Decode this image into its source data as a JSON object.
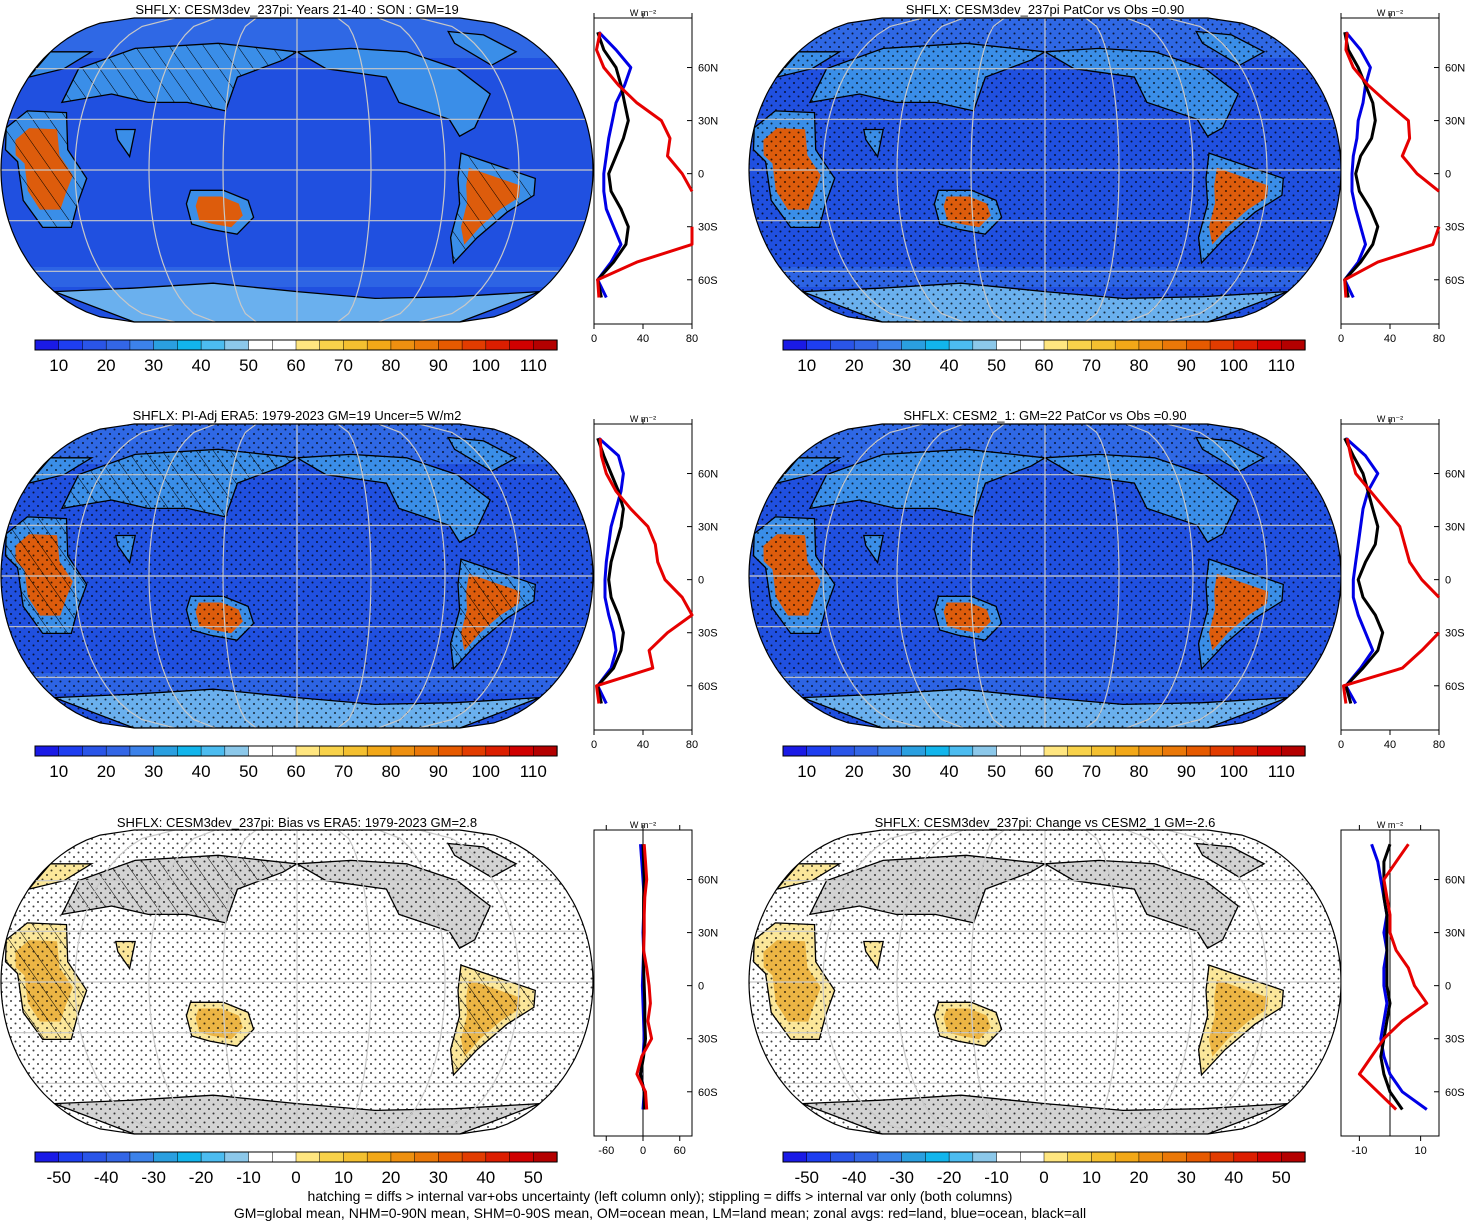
{
  "footnote": {
    "line1": "hatching = diffs > internal var+obs uncertainty (left column only); stippling = diffs > internal var only (both columns)",
    "line2": "GM=global mean, NHM=0-90N mean, SHM=0-90S mean, OM=ocean mean, LM=land mean; zonal avgs: red=land, blue=ocean, black=all"
  },
  "colors": {
    "land": "#e60000",
    "ocean": "#0000e6",
    "all": "#000000",
    "missing": "#d3d3d3",
    "graticule": "#c8c8c8"
  },
  "scales": {
    "abs": {
      "labels": [
        "10",
        "20",
        "30",
        "40",
        "50",
        "60",
        "70",
        "80",
        "90",
        "100",
        "110"
      ],
      "colors": [
        "#1a1ae6",
        "#1e3ef0",
        "#2a55e8",
        "#3366e6",
        "#3c82ea",
        "#2a9fe0",
        "#12b5ec",
        "#4cbcf0",
        "#8cc8ea",
        "#ffffff",
        "#ffffff",
        "#ffe680",
        "#f8d24a",
        "#f4c030",
        "#f2a818",
        "#ee9010",
        "#ea7808",
        "#e65a00",
        "#e23c00",
        "#dc1e00",
        "#d00000",
        "#b40000"
      ]
    },
    "diff": {
      "labels": [
        "-50",
        "-40",
        "-30",
        "-20",
        "-10",
        "0",
        "10",
        "20",
        "30",
        "40",
        "50"
      ],
      "colors": [
        "#1a1ae6",
        "#1e3ef0",
        "#2a55e8",
        "#3366e6",
        "#3c82ea",
        "#2a9fe0",
        "#12b5ec",
        "#4cbcf0",
        "#8cc8ea",
        "#ffffff",
        "#ffffff",
        "#ffe680",
        "#f8d24a",
        "#f4c030",
        "#f2a818",
        "#ee9010",
        "#ea7808",
        "#e65a00",
        "#e23c00",
        "#dc1e00",
        "#d00000",
        "#b40000"
      ]
    }
  },
  "chart_data": [
    {
      "type": "heatmap",
      "title": "SHFLX: CESM3dev_237pi: Years 21-40 : SON : GM=19",
      "kind": "abs",
      "hatching": true,
      "stippling": false,
      "zonal": {
        "unit": "W m⁻²",
        "lat_ticks": [
          "60N",
          "30N",
          "0",
          "30S",
          "60S"
        ],
        "x_ticks": [
          "0",
          "40",
          "80"
        ],
        "xlim": [
          0,
          80
        ],
        "lat": [
          80,
          70,
          60,
          50,
          40,
          30,
          20,
          10,
          0,
          -10,
          -20,
          -30,
          -40,
          -50,
          -60,
          -70
        ],
        "land": [
          5,
          2,
          8,
          20,
          35,
          55,
          62,
          60,
          72,
          82,
          null,
          92,
          80,
          35,
          3,
          4
        ],
        "ocean": [
          4,
          18,
          30,
          25,
          18,
          15,
          12,
          10,
          8,
          8,
          10,
          16,
          22,
          14,
          3,
          10
        ],
        "all": [
          3,
          8,
          18,
          22,
          25,
          28,
          24,
          18,
          12,
          14,
          22,
          28,
          26,
          16,
          3,
          6
        ]
      }
    },
    {
      "type": "heatmap",
      "title": "SHFLX: CESM3dev_237pi PatCor vs Obs =0.90",
      "kind": "abs",
      "hatching": false,
      "stippling": true,
      "zonal": {
        "unit": "W m⁻²",
        "lat_ticks": [
          "60N",
          "30N",
          "0",
          "30S",
          "60S"
        ],
        "x_ticks": [
          "0",
          "40",
          "80"
        ],
        "xlim": [
          0,
          80
        ],
        "lat": [
          80,
          70,
          60,
          50,
          40,
          30,
          20,
          10,
          0,
          -10,
          -20,
          -30,
          -40,
          -50,
          -60,
          -70
        ],
        "land": [
          5,
          4,
          10,
          22,
          38,
          55,
          56,
          50,
          62,
          82,
          null,
          88,
          75,
          30,
          3,
          4
        ],
        "ocean": [
          4,
          16,
          24,
          20,
          18,
          14,
          13,
          10,
          9,
          9,
          12,
          16,
          20,
          14,
          3,
          10
        ],
        "all": [
          3,
          6,
          14,
          20,
          26,
          28,
          25,
          16,
          12,
          15,
          24,
          30,
          26,
          16,
          3,
          6
        ]
      }
    },
    {
      "type": "heatmap",
      "title": "SHFLX: PI-Adj ERA5: 1979-2023 GM=19 Uncer=5 W/m2",
      "kind": "abs",
      "hatching": true,
      "stippling": true,
      "zonal": {
        "unit": "W m⁻²",
        "lat_ticks": [
          "60N",
          "30N",
          "0",
          "30S",
          "60S"
        ],
        "x_ticks": [
          "0",
          "40",
          "80"
        ],
        "xlim": [
          0,
          80
        ],
        "lat": [
          80,
          70,
          60,
          50,
          40,
          30,
          20,
          10,
          0,
          -10,
          -20,
          -30,
          -40,
          -50,
          -60,
          -70
        ],
        "land": [
          5,
          6,
          10,
          18,
          30,
          44,
          50,
          52,
          58,
          72,
          80,
          60,
          45,
          48,
          2,
          4
        ],
        "ocean": [
          4,
          20,
          24,
          22,
          18,
          14,
          12,
          10,
          9,
          9,
          12,
          16,
          18,
          14,
          3,
          10
        ],
        "all": [
          3,
          8,
          14,
          20,
          24,
          22,
          18,
          14,
          12,
          14,
          20,
          24,
          22,
          16,
          3,
          6
        ]
      }
    },
    {
      "type": "heatmap",
      "title": "SHFLX: CESM2_1: GM=22 PatCor vs Obs =0.90",
      "kind": "abs",
      "hatching": false,
      "stippling": true,
      "zonal": {
        "unit": "W m⁻²",
        "lat_ticks": [
          "60N",
          "30N",
          "0",
          "30S",
          "60S"
        ],
        "x_ticks": [
          "0",
          "40",
          "80"
        ],
        "xlim": [
          0,
          80
        ],
        "lat": [
          80,
          70,
          60,
          50,
          40,
          30,
          20,
          10,
          0,
          -10,
          -20,
          -30,
          -40,
          -50,
          -60,
          -70
        ],
        "land": [
          5,
          8,
          12,
          24,
          36,
          48,
          52,
          56,
          66,
          80,
          null,
          80,
          66,
          50,
          2,
          4
        ],
        "ocean": [
          4,
          20,
          30,
          22,
          18,
          16,
          14,
          12,
          10,
          10,
          14,
          20,
          26,
          16,
          4,
          12
        ],
        "all": [
          3,
          10,
          18,
          22,
          26,
          30,
          28,
          20,
          14,
          18,
          28,
          34,
          30,
          18,
          4,
          8
        ]
      }
    },
    {
      "type": "heatmap",
      "title": "SHFLX: CESM3dev_237pi: Bias vs ERA5: 1979-2023  GM=2.8",
      "kind": "diff",
      "hatching": true,
      "stippling": true,
      "zonal": {
        "unit": "W m⁻²",
        "lat_ticks": [
          "60N",
          "30N",
          "0",
          "30S",
          "60S"
        ],
        "x_ticks": [
          "-60",
          "0",
          "60"
        ],
        "xlim": [
          -80,
          80
        ],
        "lat": [
          80,
          70,
          60,
          50,
          40,
          30,
          20,
          10,
          0,
          -10,
          -20,
          -30,
          -40,
          -50,
          -60,
          -70
        ],
        "land": [
          2,
          4,
          6,
          3,
          2,
          2,
          1,
          6,
          10,
          12,
          8,
          14,
          -2,
          -10,
          4,
          6
        ],
        "ocean": [
          -4,
          -2,
          0,
          2,
          1,
          0,
          1,
          0,
          -1,
          0,
          1,
          2,
          0,
          -4,
          2,
          0
        ],
        "all": [
          0,
          1,
          2,
          1,
          1,
          1,
          1,
          1,
          2,
          3,
          3,
          4,
          1,
          -4,
          2,
          2
        ]
      }
    },
    {
      "type": "heatmap",
      "title": "SHFLX: CESM3dev_237pi: Change vs CESM2_1 GM=-2.6",
      "kind": "diff",
      "hatching": false,
      "stippling": true,
      "zonal": {
        "unit": "W m⁻²",
        "lat_ticks": [
          "60N",
          "30N",
          "0",
          "30S",
          "60S"
        ],
        "x_ticks": [
          "-10",
          "10"
        ],
        "xlim": [
          -16,
          16
        ],
        "lat": [
          80,
          70,
          60,
          50,
          40,
          30,
          20,
          10,
          0,
          -10,
          -20,
          -30,
          -40,
          -50,
          -60,
          -70
        ],
        "land": [
          6,
          2,
          -2,
          -1,
          0,
          0,
          2,
          6,
          8,
          12,
          4,
          -2,
          -6,
          -10,
          -4,
          2
        ],
        "ocean": [
          -6,
          -4,
          -3,
          -2,
          -1,
          -2,
          -1,
          -2,
          -2,
          -1,
          -2,
          -3,
          -2,
          0,
          4,
          12
        ],
        "all": [
          0,
          -2,
          -2,
          -2,
          -1,
          -1,
          -1,
          -1,
          -1,
          0,
          -1,
          -2,
          -3,
          -2,
          0,
          4
        ]
      }
    }
  ]
}
